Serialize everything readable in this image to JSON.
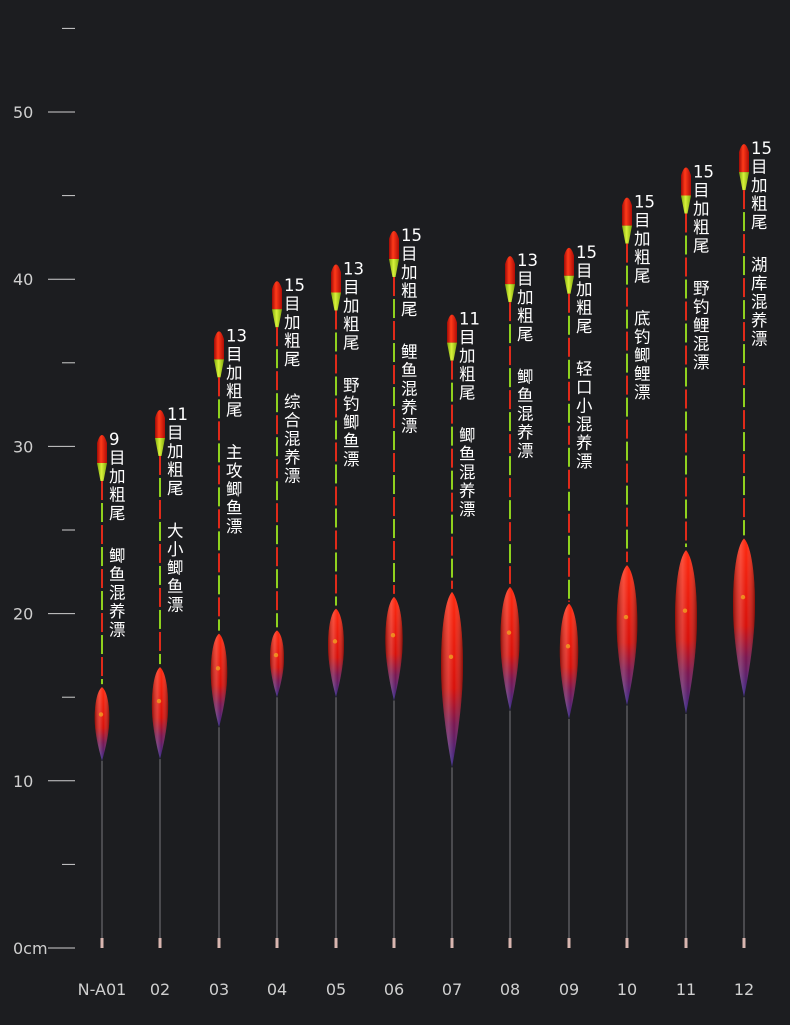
{
  "scale": {
    "unit": "cm",
    "ticks": [
      {
        "value": 0,
        "label": "0cm"
      },
      {
        "value": 5,
        "label": ""
      },
      {
        "value": 10,
        "label": "10"
      },
      {
        "value": 15,
        "label": ""
      },
      {
        "value": 20,
        "label": "20"
      },
      {
        "value": 25,
        "label": ""
      },
      {
        "value": 30,
        "label": "30"
      },
      {
        "value": 35,
        "label": ""
      },
      {
        "value": 40,
        "label": "40"
      },
      {
        "value": 45,
        "label": ""
      },
      {
        "value": 50,
        "label": "50"
      },
      {
        "value": 55,
        "label": ""
      }
    ]
  },
  "colors": {
    "background": "#1c1d20",
    "body_red": "#e0100a",
    "body_purple": "#4a2a8a",
    "tip_green": "#b8e01a",
    "segment_red": "#e02a1a",
    "segment_green": "#8fd21e",
    "text": "#ffffff",
    "axis": "#cfcfcf"
  },
  "floats": [
    {
      "model": "N-A01",
      "tip_count": "9",
      "tip_desc": "目加粗尾",
      "type_name": "鲫鱼混养漂",
      "tip_top_cm": 30.8,
      "body_top_cm": 15.6,
      "body_bottom_cm": 11.2
    },
    {
      "model": "02",
      "tip_count": "11",
      "tip_desc": "目加粗尾",
      "type_name": "大小鲫鱼漂",
      "tip_top_cm": 32.3,
      "body_top_cm": 16.8,
      "body_bottom_cm": 11.3
    },
    {
      "model": "03",
      "tip_count": "13",
      "tip_desc": "目加粗尾",
      "type_name": "主攻鲫鱼漂",
      "tip_top_cm": 37.0,
      "body_top_cm": 18.8,
      "body_bottom_cm": 13.2
    },
    {
      "model": "04",
      "tip_count": "15",
      "tip_desc": "目加粗尾",
      "type_name": "综合混养漂",
      "tip_top_cm": 40.0,
      "body_top_cm": 19.0,
      "body_bottom_cm": 15.0
    },
    {
      "model": "05",
      "tip_count": "13",
      "tip_desc": "目加粗尾",
      "type_name": "野钓鲫鱼漂",
      "tip_top_cm": 41.0,
      "body_top_cm": 20.3,
      "body_bottom_cm": 15.0
    },
    {
      "model": "06",
      "tip_count": "15",
      "tip_desc": "目加粗尾",
      "type_name": "鲤鱼混养漂",
      "tip_top_cm": 43.0,
      "body_top_cm": 21.0,
      "body_bottom_cm": 14.8
    },
    {
      "model": "07",
      "tip_count": "11",
      "tip_desc": "目加粗尾",
      "type_name": "鲫鱼混养漂",
      "tip_top_cm": 38.0,
      "body_top_cm": 21.3,
      "body_bottom_cm": 10.8
    },
    {
      "model": "08",
      "tip_count": "13",
      "tip_desc": "目加粗尾",
      "type_name": "鲫鱼混养漂",
      "tip_top_cm": 41.5,
      "body_top_cm": 21.6,
      "body_bottom_cm": 14.2
    },
    {
      "model": "09",
      "tip_count": "15",
      "tip_desc": "目加粗尾",
      "type_name": "轻口小混养漂",
      "tip_top_cm": 42.0,
      "body_top_cm": 20.6,
      "body_bottom_cm": 13.7
    },
    {
      "model": "10",
      "tip_count": "15",
      "tip_desc": "目加粗尾",
      "type_name": "底钓鲫鲤漂",
      "tip_top_cm": 45.0,
      "body_top_cm": 22.9,
      "body_bottom_cm": 14.5
    },
    {
      "model": "11",
      "tip_count": "15",
      "tip_desc": "目加粗尾",
      "type_name": "野钓鲤混漂",
      "tip_top_cm": 46.8,
      "body_top_cm": 23.8,
      "body_bottom_cm": 14.0
    },
    {
      "model": "12",
      "tip_count": "15",
      "tip_desc": "目加粗尾",
      "type_name": "湖库混养漂",
      "tip_top_cm": 48.2,
      "body_top_cm": 24.5,
      "body_bottom_cm": 15.0
    }
  ]
}
